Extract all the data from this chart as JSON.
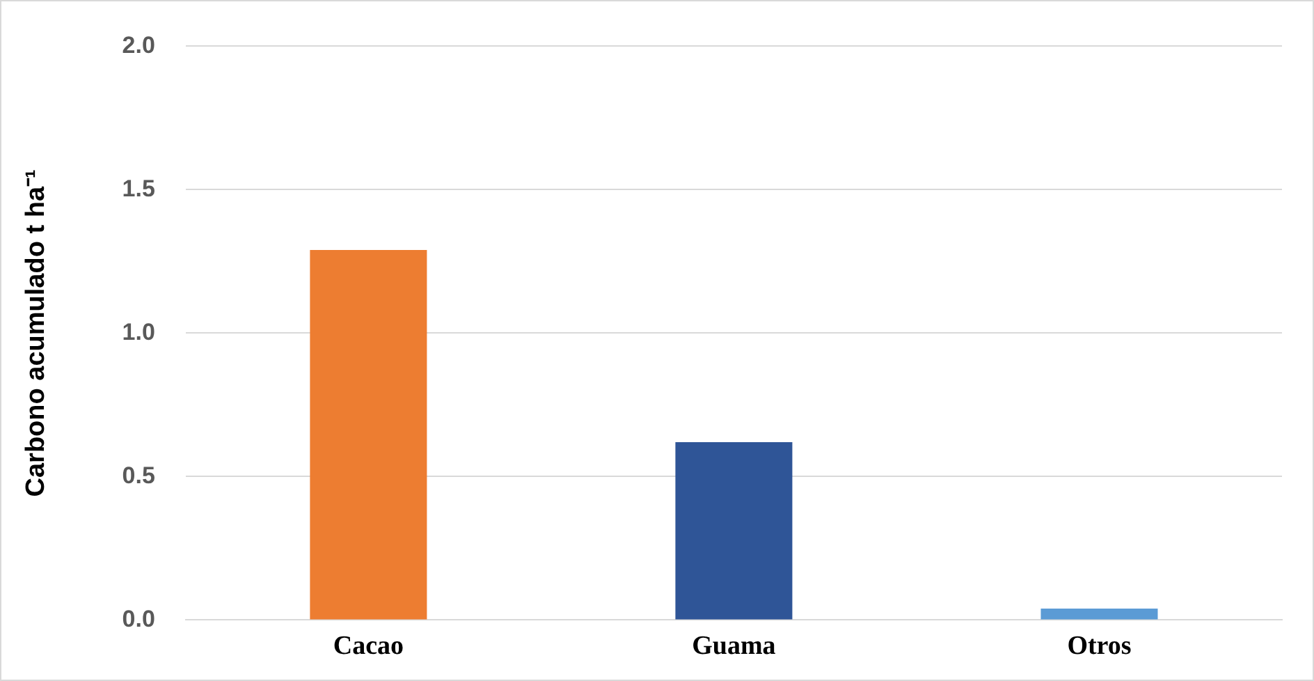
{
  "chart_data": {
    "type": "bar",
    "ylabel": "Carbono acumulado t ha⁻¹",
    "categories": [
      "Cacao",
      "Guama",
      "Otros"
    ],
    "values": [
      1.29,
      0.62,
      0.04
    ],
    "colors": [
      "#ed7d31",
      "#2f5597",
      "#5b9bd5"
    ],
    "ylim": [
      0,
      2
    ],
    "yticks": [
      {
        "value": 0,
        "label": "0.0"
      },
      0.5,
      {
        "value": 1,
        "label": "1.0"
      },
      1.5,
      {
        "value": 2,
        "label": "2.0"
      }
    ],
    "grid": "y"
  }
}
